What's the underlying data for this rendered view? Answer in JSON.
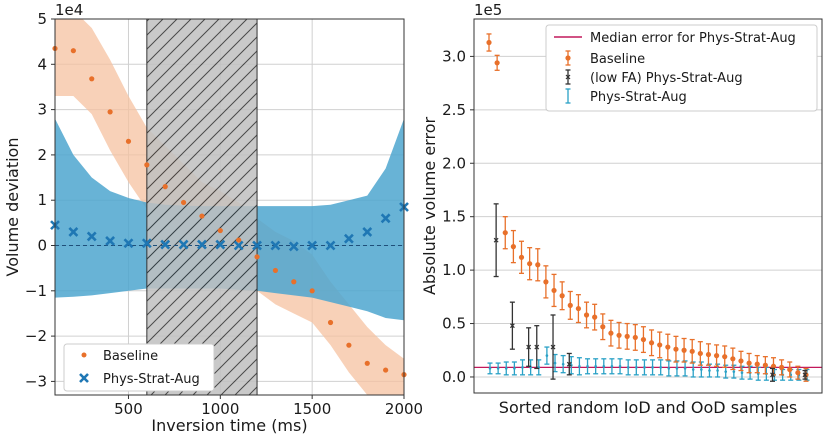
{
  "colors": {
    "baseline": "#e8702a",
    "baseline_band": "#f5c1a0",
    "phys": "#1f77b4",
    "phys_band": "#4da6cf",
    "phys_err": "#2aa1c6",
    "lowfa": "#333333",
    "median": "#c2185b",
    "hatch_fill": "#c0c0c0",
    "grid": "#d0d0d0"
  },
  "chart_data": [
    {
      "type": "scatter",
      "panel": "left",
      "title": "",
      "xlabel": "Inversion time (ms)",
      "ylabel": "Volume deviation",
      "multiplier": "1e4",
      "xlim": [
        100,
        2000
      ],
      "ylim": [
        -3.3,
        5.0
      ],
      "xticks": [
        500,
        1000,
        1500,
        2000
      ],
      "yticks": [
        -3,
        -2,
        -1,
        0,
        1,
        2,
        3,
        4,
        5
      ],
      "xtick_labels": [
        "500",
        "1000",
        "1500",
        "2000"
      ],
      "ytick_labels": [
        "−3",
        "−2",
        "−1",
        "0",
        "1",
        "2",
        "3",
        "4",
        "5"
      ],
      "hatched_region": [
        600,
        1200
      ],
      "legend_position": "lower-left",
      "grid": true,
      "series": [
        {
          "name": "Baseline",
          "marker": "dot",
          "x": [
            100,
            200,
            300,
            400,
            500,
            600,
            700,
            800,
            900,
            1000,
            1100,
            1200,
            1300,
            1400,
            1500,
            1600,
            1700,
            1800,
            1900,
            2000
          ],
          "y": [
            4.35,
            4.3,
            3.68,
            2.95,
            2.3,
            1.78,
            1.3,
            0.95,
            0.65,
            0.33,
            0.12,
            -0.25,
            -0.55,
            -0.8,
            -1.0,
            -1.7,
            -2.2,
            -2.6,
            -2.75,
            -2.85
          ],
          "band_upper": [
            5.4,
            5.2,
            4.8,
            4.1,
            3.3,
            2.6,
            2.2,
            1.8,
            1.4,
            1.2,
            0.95,
            0.6,
            0.3,
            0.1,
            -0.2,
            -0.8,
            -1.3,
            -1.8,
            -2.2,
            -2.5
          ],
          "band_lower": [
            3.3,
            3.3,
            2.9,
            2.1,
            1.4,
            0.8,
            0.6,
            0.3,
            0.0,
            -0.5,
            -0.8,
            -1.0,
            -1.3,
            -1.5,
            -1.7,
            -2.2,
            -2.8,
            -3.3,
            -3.3,
            -3.3
          ]
        },
        {
          "name": "Phys-Strat-Aug",
          "marker": "x",
          "x": [
            100,
            200,
            300,
            400,
            500,
            600,
            700,
            800,
            900,
            1000,
            1100,
            1200,
            1300,
            1400,
            1500,
            1600,
            1700,
            1800,
            1900,
            2000
          ],
          "y": [
            0.45,
            0.3,
            0.2,
            0.1,
            0.05,
            0.05,
            0.02,
            0.02,
            0.02,
            0.02,
            0.0,
            0.0,
            0.0,
            -0.02,
            0.0,
            0.0,
            0.15,
            0.3,
            0.6,
            0.85
          ],
          "band_upper": [
            2.8,
            2.0,
            1.5,
            1.2,
            1.05,
            0.95,
            0.9,
            0.88,
            0.87,
            0.87,
            0.87,
            0.87,
            0.87,
            0.87,
            0.87,
            0.9,
            1.0,
            1.1,
            1.7,
            2.8
          ],
          "band_lower": [
            -1.15,
            -1.13,
            -1.1,
            -1.05,
            -1.0,
            -0.95,
            -0.95,
            -0.95,
            -0.95,
            -0.95,
            -0.98,
            -1.0,
            -1.05,
            -1.1,
            -1.15,
            -1.25,
            -1.35,
            -1.45,
            -1.6,
            -1.65
          ]
        }
      ]
    },
    {
      "type": "scatter",
      "panel": "right",
      "title": "",
      "xlabel": "Sorted random IoD and OoD samples",
      "ylabel": "Absolute volume error",
      "multiplier": "1e5",
      "ylim": [
        -0.15,
        3.35
      ],
      "yticks": [
        0.0,
        0.5,
        1.0,
        1.5,
        2.0,
        2.5,
        3.0
      ],
      "ytick_labels": [
        "0.0",
        "0.5",
        "1.0",
        "1.5",
        "2.0",
        "2.5",
        "3.0"
      ],
      "median_error": 0.09,
      "legend_position": "top-right",
      "grid": true,
      "series": [
        {
          "name": "Baseline",
          "values": [
            3.13,
            2.94,
            1.35,
            1.22,
            1.12,
            1.06,
            1.05,
            0.89,
            0.81,
            0.76,
            0.67,
            0.64,
            0.58,
            0.56,
            0.47,
            0.41,
            0.39,
            0.38,
            0.37,
            0.35,
            0.32,
            0.3,
            0.28,
            0.26,
            0.25,
            0.24,
            0.22,
            0.21,
            0.2,
            0.19,
            0.17,
            0.15,
            0.13,
            0.12,
            0.11,
            0.1,
            0.09,
            0.07,
            0.04,
            0.02
          ],
          "errors": [
            0.08,
            0.07,
            0.15,
            0.15,
            0.15,
            0.15,
            0.15,
            0.15,
            0.15,
            0.13,
            0.13,
            0.13,
            0.12,
            0.12,
            0.12,
            0.12,
            0.12,
            0.12,
            0.12,
            0.12,
            0.12,
            0.12,
            0.12,
            0.12,
            0.11,
            0.11,
            0.11,
            0.1,
            0.1,
            0.1,
            0.1,
            0.09,
            0.09,
            0.08,
            0.08,
            0.08,
            0.07,
            0.07,
            0.06,
            0.06
          ]
        },
        {
          "name": "(low FA) Phys-Strat-Aug",
          "indices": [
            1,
            3,
            5,
            6,
            8,
            10,
            35,
            39
          ],
          "values": [
            1.28,
            0.48,
            0.28,
            0.28,
            0.28,
            0.12,
            0.02,
            0.02
          ],
          "errors": [
            0.34,
            0.22,
            0.18,
            0.2,
            0.3,
            0.1,
            0.06,
            0.04
          ]
        },
        {
          "name": "Phys-Strat-Aug",
          "values": [
            0.08,
            0.08,
            0.08,
            0.08,
            0.09,
            0.09,
            0.09,
            0.2,
            0.13,
            0.12,
            0.11,
            0.1,
            0.1,
            0.1,
            0.1,
            0.1,
            0.1,
            0.09,
            0.09,
            0.09,
            0.09,
            0.09,
            0.08,
            0.08,
            0.08,
            0.07,
            0.07,
            0.06,
            0.06,
            0.05,
            0.05,
            0.04,
            0.04,
            0.03,
            0.03,
            0.02,
            0.02,
            0.02,
            0.02,
            0.02
          ],
          "errors": [
            0.05,
            0.05,
            0.06,
            0.06,
            0.07,
            0.07,
            0.07,
            0.08,
            0.08,
            0.08,
            0.08,
            0.08,
            0.07,
            0.07,
            0.07,
            0.07,
            0.07,
            0.07,
            0.07,
            0.07,
            0.07,
            0.07,
            0.07,
            0.07,
            0.07,
            0.07,
            0.07,
            0.06,
            0.06,
            0.06,
            0.06,
            0.06,
            0.06,
            0.06,
            0.06,
            0.05,
            0.05,
            0.05,
            0.05,
            0.05
          ]
        }
      ],
      "legend": {
        "median_label": "Median error for Phys-Strat-Aug",
        "baseline_label": "Baseline",
        "lowfa_label": "(low FA) Phys-Strat-Aug",
        "phys_label": "Phys-Strat-Aug"
      }
    }
  ]
}
